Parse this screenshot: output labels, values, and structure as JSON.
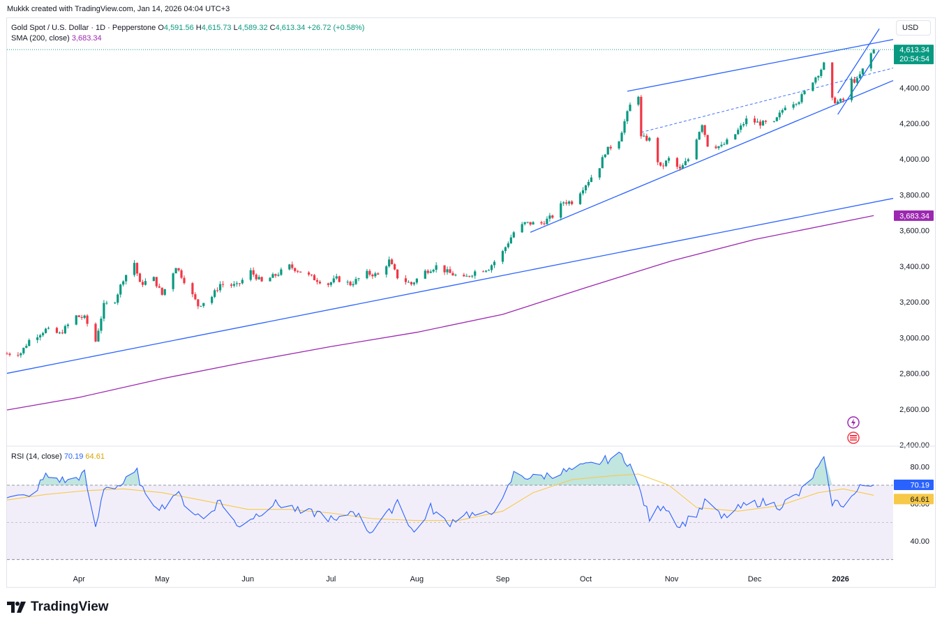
{
  "header": {
    "credit": "Mukkk created with TradingView.com, Jan 14, 2026 04:04 UTC+3",
    "currency_button": "USD",
    "logo_text": "TradingView"
  },
  "legend": {
    "symbol": "Gold Spot / U.S. Dollar · 1D · Pepperstone",
    "o_label": "O",
    "o": "4,591.56",
    "h_label": "H",
    "h": "4,615.73",
    "l_label": "L",
    "l": "4,589.32",
    "c_label": "C",
    "c": "4,613.34",
    "change": "+26.72 (+0.58%)",
    "sma_label": "SMA (200, close)",
    "sma_value": "3,683.34"
  },
  "rsi_legend": {
    "label": "RSI (14, close)",
    "rsi": "70.19",
    "rsi_ma": "64.61"
  },
  "badges": {
    "price": "4,613.34",
    "countdown": "20:54:54",
    "sma": "3,683.34",
    "rsi": "70.19",
    "rsi_ma": "64.61"
  },
  "colors": {
    "up": "#089981",
    "down": "#f23645",
    "trendline": "#2962ff",
    "sma": "#9c27b0",
    "rsi": "#2962ff",
    "rsi_ma": "#f7c948",
    "rsi_band": "#7e57c2"
  },
  "chart_data": [
    {
      "type": "candlestick",
      "title": "Gold Spot / U.S. Dollar · 1D · Pepperstone",
      "y_ticks": [
        "2,400.00",
        "2,600.00",
        "2,800.00",
        "3,000.00",
        "3,200.00",
        "3,400.00",
        "3,600.00",
        "3,800.00",
        "4,000.00",
        "4,200.00",
        "4,400.00"
      ],
      "ylim": [
        2400,
        4610
      ],
      "x_ticks": [
        "Apr",
        "May",
        "Jun",
        "Jul",
        "Aug",
        "Sep",
        "Oct",
        "Nov",
        "Dec",
        "2026"
      ],
      "x_range": [
        "2025-03-06",
        "2026-01-20"
      ],
      "last_candle": "2026-01-13",
      "series": [
        {
          "name": "SMA (200, close)",
          "x": [
            "2025-03-06",
            "2025-04-01",
            "2025-05-01",
            "2025-06-01",
            "2025-07-01",
            "2025-08-01",
            "2025-09-01",
            "2025-10-01",
            "2025-11-01",
            "2025-12-01",
            "2026-01-13"
          ],
          "values": [
            2595,
            2665,
            2770,
            2865,
            2950,
            3030,
            3130,
            3280,
            3430,
            3550,
            3683.34
          ]
        }
      ],
      "closes": [
        [
          "2025-03-06",
          2910
        ],
        [
          "2025-03-11",
          2915
        ],
        [
          "2025-03-14",
          2985
        ],
        [
          "2025-03-20",
          3045
        ],
        [
          "2025-03-25",
          3020
        ],
        [
          "2025-03-31",
          3120
        ],
        [
          "2025-04-03",
          3110
        ],
        [
          "2025-04-07",
          2980
        ],
        [
          "2025-04-10",
          3180
        ],
        [
          "2025-04-14",
          3210
        ],
        [
          "2025-04-17",
          3330
        ],
        [
          "2025-04-21",
          3420
        ],
        [
          "2025-04-23",
          3300
        ],
        [
          "2025-04-28",
          3330
        ],
        [
          "2025-05-01",
          3240
        ],
        [
          "2025-05-06",
          3400
        ],
        [
          "2025-05-09",
          3320
        ],
        [
          "2025-05-14",
          3180
        ],
        [
          "2025-05-19",
          3230
        ],
        [
          "2025-05-22",
          3300
        ],
        [
          "2025-05-28",
          3290
        ],
        [
          "2025-06-02",
          3370
        ],
        [
          "2025-06-06",
          3310
        ],
        [
          "2025-06-11",
          3350
        ],
        [
          "2025-06-16",
          3400
        ],
        [
          "2025-06-20",
          3370
        ],
        [
          "2025-06-25",
          3330
        ],
        [
          "2025-06-30",
          3300
        ],
        [
          "2025-07-03",
          3330
        ],
        [
          "2025-07-08",
          3300
        ],
        [
          "2025-07-14",
          3360
        ],
        [
          "2025-07-18",
          3350
        ],
        [
          "2025-07-22",
          3430
        ],
        [
          "2025-07-25",
          3340
        ],
        [
          "2025-07-30",
          3300
        ],
        [
          "2025-08-04",
          3370
        ],
        [
          "2025-08-08",
          3400
        ],
        [
          "2025-08-13",
          3360
        ],
        [
          "2025-08-18",
          3330
        ],
        [
          "2025-08-22",
          3370
        ],
        [
          "2025-08-27",
          3390
        ],
        [
          "2025-09-01",
          3480
        ],
        [
          "2025-09-05",
          3590
        ],
        [
          "2025-09-09",
          3640
        ],
        [
          "2025-09-15",
          3640
        ],
        [
          "2025-09-19",
          3680
        ],
        [
          "2025-09-23",
          3760
        ],
        [
          "2025-09-26",
          3760
        ],
        [
          "2025-10-01",
          3860
        ],
        [
          "2025-10-06",
          3960
        ],
        [
          "2025-10-08",
          4040
        ],
        [
          "2025-10-13",
          4110
        ],
        [
          "2025-10-15",
          4210
        ],
        [
          "2025-10-17",
          4300
        ],
        [
          "2025-10-20",
          4360
        ],
        [
          "2025-10-21",
          4120
        ],
        [
          "2025-10-24",
          4110
        ],
        [
          "2025-10-28",
          3950
        ],
        [
          "2025-10-31",
          4000
        ],
        [
          "2025-11-04",
          3940
        ],
        [
          "2025-11-07",
          4000
        ],
        [
          "2025-11-12",
          4200
        ],
        [
          "2025-11-14",
          4080
        ],
        [
          "2025-11-19",
          4070
        ],
        [
          "2025-11-24",
          4140
        ],
        [
          "2025-11-28",
          4220
        ],
        [
          "2025-12-03",
          4200
        ],
        [
          "2025-12-08",
          4200
        ],
        [
          "2025-12-12",
          4300
        ],
        [
          "2025-12-17",
          4330
        ],
        [
          "2025-12-22",
          4440
        ],
        [
          "2025-12-24",
          4480
        ],
        [
          "2025-12-26",
          4530
        ],
        [
          "2025-12-29",
          4330
        ],
        [
          "2025-12-31",
          4320
        ],
        [
          "2026-01-02",
          4330
        ],
        [
          "2026-01-05",
          4440
        ],
        [
          "2026-01-07",
          4440
        ],
        [
          "2026-01-09",
          4500
        ],
        [
          "2026-01-12",
          4590
        ],
        [
          "2026-01-13",
          4613.34
        ]
      ],
      "trendlines": [
        {
          "name": "long-term support",
          "from": [
            "2025-03-06",
            2800
          ],
          "to": [
            "2026-01-20",
            3780
          ]
        },
        {
          "name": "channel upper",
          "from": [
            "2025-10-16",
            4380
          ],
          "to": [
            "2026-01-20",
            4670
          ]
        },
        {
          "name": "channel lower",
          "from": [
            "2025-09-11",
            3590
          ],
          "to": [
            "2026-01-20",
            4440
          ]
        },
        {
          "name": "channel mid (dashed)",
          "from": [
            "2025-10-21",
            4150
          ],
          "to": [
            "2026-01-20",
            4510
          ]
        },
        {
          "name": "short channel upper",
          "from": [
            "2025-12-31",
            4370
          ],
          "to": [
            "2026-01-15",
            4730
          ]
        },
        {
          "name": "short channel lower",
          "from": [
            "2025-12-31",
            4250
          ],
          "to": [
            "2026-01-15",
            4610
          ]
        }
      ],
      "last_price": 4613.34
    },
    {
      "type": "line",
      "title": "RSI (14, close)",
      "y_ticks": [
        "40.00",
        "60.00",
        "80.00"
      ],
      "ylim": [
        28,
        88
      ],
      "overbought": 70,
      "oversold": 30,
      "midline": 50,
      "series": [
        {
          "name": "RSI",
          "x": [
            "2025-03-06",
            "2025-03-14",
            "2025-03-20",
            "2025-03-28",
            "2025-04-03",
            "2025-04-07",
            "2025-04-10",
            "2025-04-16",
            "2025-04-22",
            "2025-04-25",
            "2025-05-01",
            "2025-05-06",
            "2025-05-12",
            "2025-05-16",
            "2025-05-22",
            "2025-05-28",
            "2025-06-04",
            "2025-06-10",
            "2025-06-16",
            "2025-06-20",
            "2025-06-27",
            "2025-07-03",
            "2025-07-09",
            "2025-07-15",
            "2025-07-22",
            "2025-07-25",
            "2025-07-31",
            "2025-08-06",
            "2025-08-12",
            "2025-08-18",
            "2025-08-25",
            "2025-09-01",
            "2025-09-05",
            "2025-09-12",
            "2025-09-19",
            "2025-09-26",
            "2025-10-03",
            "2025-10-09",
            "2025-10-14",
            "2025-10-17",
            "2025-10-21",
            "2025-10-24",
            "2025-10-29",
            "2025-11-04",
            "2025-11-10",
            "2025-11-14",
            "2025-11-19",
            "2025-11-26",
            "2025-12-03",
            "2025-12-10",
            "2025-12-17",
            "2025-12-22",
            "2025-12-26",
            "2025-12-29",
            "2026-01-02",
            "2026-01-06",
            "2026-01-09",
            "2026-01-13"
          ],
          "values": [
            65,
            63,
            75,
            72,
            76,
            46,
            69,
            70,
            77,
            63,
            58,
            66,
            56,
            52,
            62,
            48,
            54,
            60,
            59,
            55,
            55,
            50,
            57,
            45,
            55,
            62,
            44,
            58,
            49,
            55,
            53,
            61,
            76,
            74,
            76,
            78,
            81,
            84,
            86,
            81,
            65,
            52,
            60,
            48,
            55,
            62,
            52,
            58,
            61,
            59,
            65,
            75,
            83,
            61,
            60,
            65,
            70,
            70.19
          ]
        },
        {
          "name": "RSI MA",
          "x": [
            "2025-03-06",
            "2025-03-20",
            "2025-04-03",
            "2025-04-17",
            "2025-05-01",
            "2025-05-15",
            "2025-06-01",
            "2025-06-16",
            "2025-07-01",
            "2025-07-16",
            "2025-08-01",
            "2025-08-16",
            "2025-09-01",
            "2025-09-12",
            "2025-09-26",
            "2025-10-10",
            "2025-10-20",
            "2025-10-31",
            "2025-11-10",
            "2025-11-25",
            "2025-12-10",
            "2025-12-24",
            "2026-01-02",
            "2026-01-13"
          ],
          "values": [
            62,
            65,
            67,
            68,
            66,
            62,
            57,
            57,
            55,
            52,
            51,
            51,
            56,
            66,
            73,
            75,
            76,
            70,
            58,
            56,
            59,
            66,
            68,
            64.61
          ]
        }
      ]
    }
  ]
}
